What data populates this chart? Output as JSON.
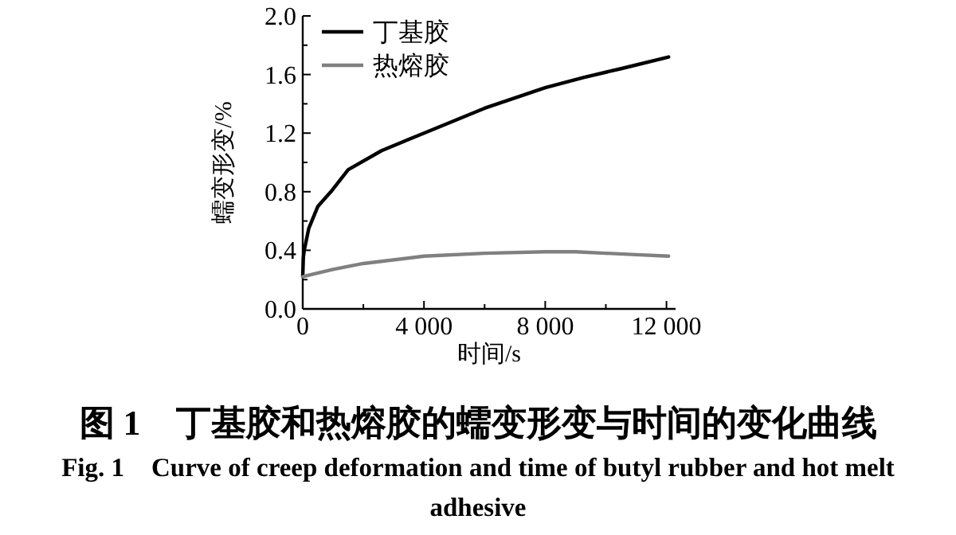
{
  "chart_data": {
    "type": "line",
    "title": "图 1　丁基胶和热熔胶的蠕变形变与时间的变化曲线",
    "subtitle": "Fig. 1　Curve of creep deformation and time of butyl rubber and hot melt adhesive",
    "xlabel": "时间/s",
    "ylabel": "蠕变形变/%",
    "xlim": [
      0,
      12300
    ],
    "xticks": [
      0,
      {
        "value": 2000,
        "label": null
      },
      {
        "value": 4000,
        "label": "4 000"
      },
      {
        "value": 6000,
        "label": null
      },
      {
        "value": 8000,
        "label": "8 000"
      },
      {
        "value": 10000,
        "label": null
      },
      {
        "value": 12000,
        "label": "12 000"
      }
    ],
    "ylim": [
      0,
      2
    ],
    "yticks": [
      {
        "value": 0,
        "label": "0.0"
      },
      {
        "value": 0.2,
        "label": null
      },
      0.4,
      {
        "value": 0.6,
        "label": null
      },
      0.8,
      {
        "value": 1,
        "label": null
      },
      1.2,
      {
        "value": 1.4,
        "label": null
      },
      1.6,
      {
        "value": 1.8,
        "label": null
      },
      {
        "value": 2,
        "label": "2.0"
      }
    ],
    "grid": false,
    "legend": "top left",
    "marker": "none",
    "line_style": "solid",
    "series": [
      {
        "name": "丁基胶",
        "color": "#000000",
        "x": [
          0,
          20,
          50,
          200,
          500,
          930,
          1500,
          2600,
          4000,
          6000,
          8000,
          9260,
          10500,
          12070
        ],
        "values": [
          0.22,
          0.35,
          0.4,
          0.55,
          0.7,
          0.8,
          0.95,
          1.08,
          1.2,
          1.37,
          1.51,
          1.58,
          1.64,
          1.72
        ]
      },
      {
        "name": "热熔胶",
        "color": "#808080",
        "x": [
          0,
          200,
          1000,
          2000,
          4000,
          6000,
          8000,
          9000,
          10000,
          11000,
          12070
        ],
        "values": [
          0.22,
          0.23,
          0.27,
          0.31,
          0.36,
          0.38,
          0.39,
          0.39,
          0.38,
          0.37,
          0.36
        ]
      }
    ]
  }
}
